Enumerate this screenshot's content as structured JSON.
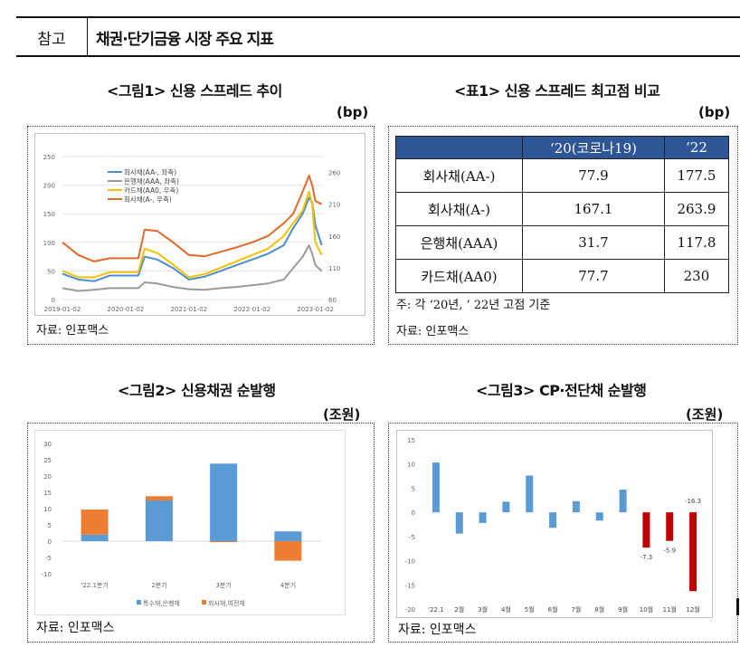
{
  "header": {
    "tag": "참고",
    "title": "채권·단기금융 시장 주요 지표"
  },
  "figure1": {
    "title": "<그림1> 신용 스프레드 추이",
    "unit": "(bp)",
    "source": "자료: 인포맥스",
    "chart_data": {
      "type": "line",
      "title": "",
      "x_ticks": [
        "2019-01-02",
        "2020-01-02",
        "2021-01-02",
        "2022-01-02",
        "2023-01-02"
      ],
      "y_left_ticks": [
        "0",
        "50",
        "100",
        "150",
        "200",
        "250"
      ],
      "y_right_ticks": [
        "60",
        "110",
        "160",
        "210",
        "260"
      ],
      "ylim_left": [
        0,
        250
      ],
      "ylim_right": [
        60,
        285
      ],
      "legend": [
        "회사채(AA-, 좌축)",
        "은행채(AAA, 좌축)",
        "카드채(AA0, 우축)",
        "회사채(A-, 우축)"
      ],
      "legend_position": "top-left",
      "x": [
        2019.0,
        2019.25,
        2019.5,
        2019.75,
        2020.0,
        2020.2,
        2020.3,
        2020.5,
        2020.75,
        2021.0,
        2021.25,
        2021.5,
        2021.75,
        2022.0,
        2022.25,
        2022.5,
        2022.65,
        2022.8,
        2022.9,
        2022.95,
        2023.0,
        2023.1
      ],
      "series": [
        {
          "name": "회사채(AA-, 좌축)",
          "axis": "left",
          "color": "#4a8ed0",
          "values": [
            45,
            35,
            32,
            42,
            42,
            42,
            75,
            70,
            55,
            35,
            40,
            50,
            60,
            70,
            80,
            95,
            125,
            150,
            178,
            170,
            130,
            95
          ]
        },
        {
          "name": "은행채(AAA, 좌축)",
          "axis": "left",
          "color": "#9a9a9a",
          "values": [
            20,
            15,
            17,
            20,
            20,
            20,
            30,
            28,
            22,
            18,
            17,
            20,
            22,
            25,
            28,
            35,
            55,
            75,
            95,
            80,
            60,
            50
          ]
        },
        {
          "name": "카드채(AA0, 우축)",
          "axis": "right",
          "color": "#f5c000",
          "values": [
            105,
            95,
            95,
            103,
            103,
            103,
            140,
            133,
            115,
            95,
            100,
            110,
            120,
            130,
            140,
            160,
            180,
            200,
            230,
            210,
            150,
            130
          ]
        },
        {
          "name": "회사채(A-, 우축)",
          "axis": "right",
          "color": "#e3692a",
          "values": [
            150,
            130,
            120,
            125,
            125,
            125,
            170,
            168,
            150,
            130,
            128,
            135,
            142,
            150,
            160,
            180,
            195,
            230,
            255,
            240,
            215,
            210
          ]
        }
      ]
    }
  },
  "table1": {
    "title": "<표1> 신용 스프레드 최고점 비교",
    "unit": "(bp)",
    "columns": [
      "",
      "‘20(코로나19)",
      "‘22"
    ],
    "rows": [
      [
        "회사채(AA-)",
        "77.9",
        "177.5"
      ],
      [
        "회사채(A-)",
        "167.1",
        "263.9"
      ],
      [
        "은행채(AAA)",
        "31.7",
        "117.8"
      ],
      [
        "카드채(AA0)",
        "77.7",
        "230"
      ]
    ],
    "note": "주: 각 ‘20년, ’ 22년 고점 기준",
    "source": "자료: 인포맥스"
  },
  "figure2": {
    "title": "<그림2> 신용채권 순발행",
    "unit": "(조원)",
    "source": "자료: 인포맥스",
    "chart_data": {
      "type": "bar",
      "stacked": true,
      "categories": [
        "'22.1분기",
        "2분기",
        "3분기",
        "4분기"
      ],
      "y_ticks": [
        "30",
        "25",
        "20",
        "15",
        "10",
        "5",
        "0",
        "-5",
        "-10"
      ],
      "ylim": [
        -10,
        30
      ],
      "legend_position": "bottom",
      "series": [
        {
          "name": "특수채,은행채",
          "color": "#5b9bd5",
          "values": [
            2.0,
            12.5,
            23.8,
            3.0
          ]
        },
        {
          "name": "회사채,여전채",
          "color": "#ed7d31",
          "values": [
            7.7,
            1.3,
            -0.3,
            -6.0
          ]
        }
      ]
    }
  },
  "figure3": {
    "title": "<그림3> CP·전단채 순발행",
    "unit": "(조원)",
    "source": "자료: 인포맥스",
    "chart_data": {
      "type": "bar",
      "categories": [
        "'22.1",
        "2월",
        "3월",
        "4월",
        "5월",
        "6월",
        "7월",
        "8월",
        "9월",
        "10월",
        "11월",
        "12월"
      ],
      "values": [
        10.3,
        -4.4,
        -2.2,
        2.2,
        7.6,
        -3.2,
        2.3,
        -1.7,
        4.7,
        -7.3,
        -5.9,
        -16.3
      ],
      "highlight": [
        false,
        false,
        false,
        false,
        false,
        false,
        false,
        false,
        false,
        true,
        true,
        true
      ],
      "data_labels": [
        "",
        "",
        "",
        "",
        "",
        "",
        "",
        "",
        "",
        "-7.3",
        "-5.9",
        "-16.3"
      ],
      "colors": {
        "normal": "#5b9bd5",
        "highlight": "#c00000"
      },
      "y_ticks": [
        "15",
        "10",
        "5",
        "0",
        "-5",
        "-10",
        "-15",
        "-20"
      ],
      "ylim": [
        -20,
        15
      ]
    }
  }
}
